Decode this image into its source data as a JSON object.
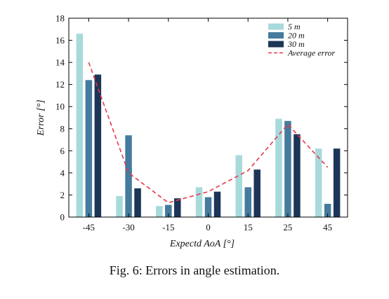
{
  "caption": "Fig. 6: Errors in angle estimation.",
  "chart_data": {
    "type": "bar",
    "title": "",
    "xlabel": "Expectd AoA [°]",
    "ylabel": "Error [°]",
    "categories": [
      "-45",
      "-30",
      "-15",
      "0",
      "15",
      "25",
      "45"
    ],
    "ylim": [
      0,
      18
    ],
    "yticks": [
      0,
      2,
      4,
      6,
      8,
      10,
      12,
      14,
      16,
      18
    ],
    "grid": false,
    "legend_position": "top-right",
    "series": [
      {
        "name": "5 m",
        "values": [
          16.6,
          1.9,
          1.0,
          2.7,
          5.6,
          8.9,
          6.2
        ],
        "color": "#a8dadc"
      },
      {
        "name": "20 m",
        "values": [
          12.4,
          7.4,
          1.1,
          1.8,
          2.7,
          8.7,
          1.2
        ],
        "color": "#457b9d"
      },
      {
        "name": "30 m",
        "values": [
          12.9,
          2.6,
          1.7,
          2.3,
          4.3,
          7.5,
          6.2
        ],
        "color": "#1d3557"
      }
    ],
    "line_series": {
      "name": "Average error",
      "values": [
        14.0,
        4.0,
        1.3,
        2.3,
        4.2,
        8.4,
        4.5
      ],
      "color": "#e63946",
      "dash": "dashed"
    }
  }
}
